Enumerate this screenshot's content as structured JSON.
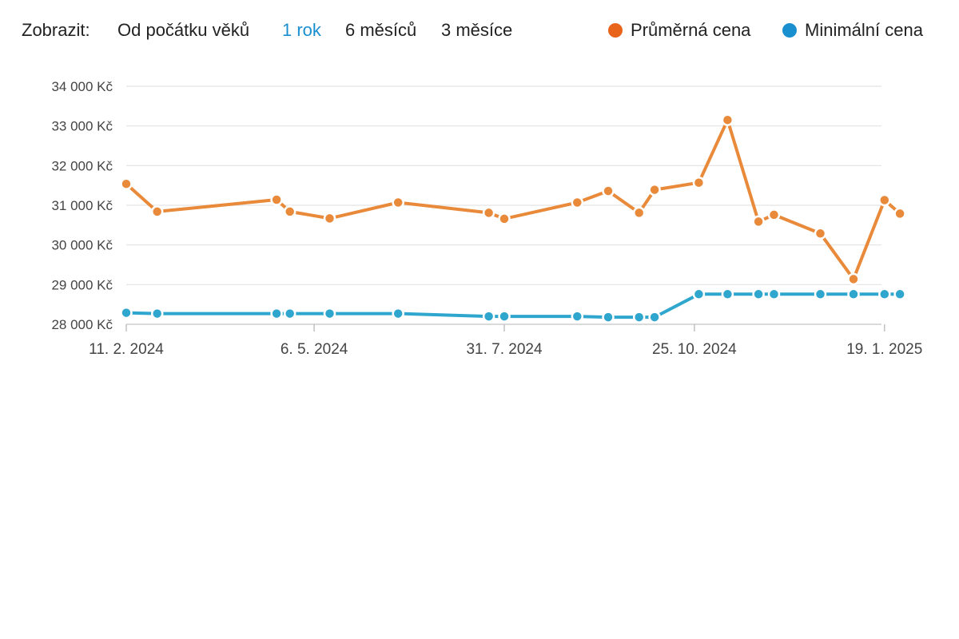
{
  "filters": {
    "label": "Zobrazit:",
    "options": [
      {
        "label": "Od počátku věků",
        "active": false
      },
      {
        "label": "1 rok",
        "active": true
      },
      {
        "label": "6 měsíců",
        "active": false
      },
      {
        "label": "3 měsíce",
        "active": false
      }
    ]
  },
  "legend": [
    {
      "label": "Průměrná cena",
      "color": "#e8641b"
    },
    {
      "label": "Minimální cena",
      "color": "#1a8fd0"
    }
  ],
  "chart_data": {
    "type": "line",
    "title": "",
    "xlabel": "",
    "ylabel": "",
    "x_ticks": [
      "2024-02-11",
      "2024-05-06",
      "2024-07-31",
      "2024-10-25",
      "2025-01-19"
    ],
    "x_tick_labels": [
      "11. 2. 2024",
      "6. 5. 2024",
      "31. 7. 2024",
      "25. 10. 2024",
      "19. 1. 2025"
    ],
    "xlim": [
      "2024-02-11",
      "2025-01-19"
    ],
    "ylim": [
      28000,
      34000
    ],
    "y_ticks": [
      28000,
      29000,
      30000,
      31000,
      32000,
      33000,
      34000
    ],
    "y_tick_labels": [
      "28 000 Kč",
      "29 000 Kč",
      "30 000 Kč",
      "31 000 Kč",
      "32 000 Kč",
      "33 000 Kč",
      "34 000 Kč"
    ],
    "grid": true,
    "legend_position": "top-right",
    "series": [
      {
        "name": "Průměrná cena",
        "color": "#e9893a",
        "points": [
          [
            "2024-02-11",
            31540
          ],
          [
            "2024-02-25",
            30840
          ],
          [
            "2024-04-19",
            31140
          ],
          [
            "2024-04-25",
            30840
          ],
          [
            "2024-05-13",
            30670
          ],
          [
            "2024-06-13",
            31070
          ],
          [
            "2024-07-24",
            30810
          ],
          [
            "2024-07-31",
            30660
          ],
          [
            "2024-09-02",
            31070
          ],
          [
            "2024-09-16",
            31360
          ],
          [
            "2024-09-30",
            30810
          ],
          [
            "2024-10-07",
            31390
          ],
          [
            "2024-10-27",
            31570
          ],
          [
            "2024-11-09",
            33150
          ],
          [
            "2024-11-23",
            30590
          ],
          [
            "2024-11-30",
            30760
          ],
          [
            "2024-12-21",
            30290
          ],
          [
            "2025-01-05",
            29140
          ],
          [
            "2025-01-19",
            31130
          ],
          [
            "2025-01-26",
            30790
          ]
        ]
      },
      {
        "name": "Minimální cena",
        "color": "#2fa6cd",
        "points": [
          [
            "2024-02-11",
            28290
          ],
          [
            "2024-02-25",
            28270
          ],
          [
            "2024-04-19",
            28270
          ],
          [
            "2024-04-25",
            28270
          ],
          [
            "2024-05-13",
            28270
          ],
          [
            "2024-06-13",
            28270
          ],
          [
            "2024-07-24",
            28200
          ],
          [
            "2024-07-31",
            28200
          ],
          [
            "2024-09-02",
            28200
          ],
          [
            "2024-09-16",
            28180
          ],
          [
            "2024-09-30",
            28180
          ],
          [
            "2024-10-07",
            28180
          ],
          [
            "2024-10-27",
            28760
          ],
          [
            "2024-11-09",
            28760
          ],
          [
            "2024-11-23",
            28760
          ],
          [
            "2024-11-30",
            28760
          ],
          [
            "2024-12-21",
            28760
          ],
          [
            "2025-01-05",
            28760
          ],
          [
            "2025-01-19",
            28760
          ],
          [
            "2025-01-26",
            28760
          ]
        ]
      }
    ]
  }
}
